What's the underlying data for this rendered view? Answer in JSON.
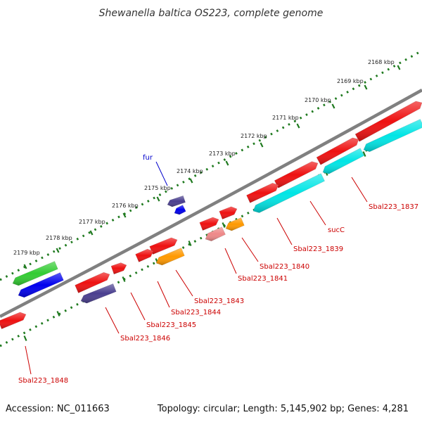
{
  "title": "Shewanella baltica OS223, complete genome",
  "footer": {
    "accession": "Accession: NC_011663",
    "topology": "Topology: circular; Length: 5,145,902 bp; Genes: 4,281"
  },
  "kbp_labels": [
    "2168 kbp",
    "2169 kbp",
    "2170 kbp",
    "2171 kbp",
    "2172 kbp",
    "2173 kbp",
    "2174 kbp",
    "2175 kbp",
    "2176 kbp",
    "2177 kbp",
    "2178 kbp",
    "2179 kbp"
  ],
  "gene_labels": {
    "fur": "fur",
    "sbal_1837": "Sbal223_1837",
    "succ": "sucC",
    "sbal_1839": "Sbal223_1839",
    "sbal_1840": "Sbal223_1840",
    "sbal_1841": "Sbal223_1841",
    "sbal_1843": "Sbal223_1843",
    "sbal_1844": "Sbal223_1844",
    "sbal_1845": "Sbal223_1845",
    "sbal_1846": "Sbal223_1846",
    "sbal_1848": "Sbal223_1848"
  },
  "colors": {
    "backbone": "#808080",
    "tick": "#1f7a1f",
    "red": "#ee1111",
    "cyan": "#00e5e5",
    "orange": "#ff9900",
    "pink": "#ee8888",
    "slate": "#4a3f8f",
    "blue": "#0000ee",
    "green": "#33cc33",
    "label_red": "#cc0000",
    "label_blue": "#0000cc"
  }
}
